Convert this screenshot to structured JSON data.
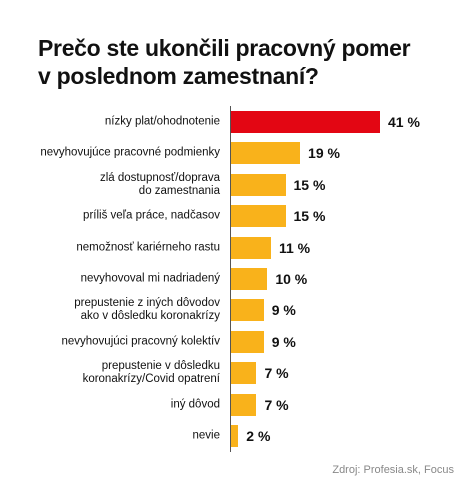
{
  "chart_data": {
    "type": "bar",
    "orientation": "horizontal",
    "title": "Prečo ste ukončili pracovný pomer\nv poslednom zamestnaní?",
    "categories": [
      "nízky plat/ohodnotenie",
      "nevyhovujúce pracovné podmienky",
      "zlá dostupnosť/doprava\ndo zamestnania",
      "príliš veľa práce, nadčasov",
      "nemožnosť kariérneho rastu",
      "nevyhovoval mi nadriadený",
      "prepustenie z iných dôvodov\nako v dôsledku koronakrízy",
      "nevyhovujúci pracovný kolektív",
      "prepustenie v dôsledku\nkoronakrízy/Covid opatrení",
      "iný dôvod",
      "nevie"
    ],
    "values": [
      41,
      19,
      15,
      15,
      11,
      10,
      9,
      9,
      7,
      7,
      2
    ],
    "value_labels": [
      "41 %",
      "19 %",
      "15 %",
      "15 %",
      "11 %",
      "10 %",
      "9 %",
      "9 %",
      "7 %",
      "7 %",
      "2 %"
    ],
    "colors": [
      "#e30613",
      "#f9b21b",
      "#f9b21b",
      "#f9b21b",
      "#f9b21b",
      "#f9b21b",
      "#f9b21b",
      "#f9b21b",
      "#f9b21b",
      "#f9b21b",
      "#f9b21b"
    ],
    "source": "Zdroj: Profesia.sk, Focus"
  }
}
